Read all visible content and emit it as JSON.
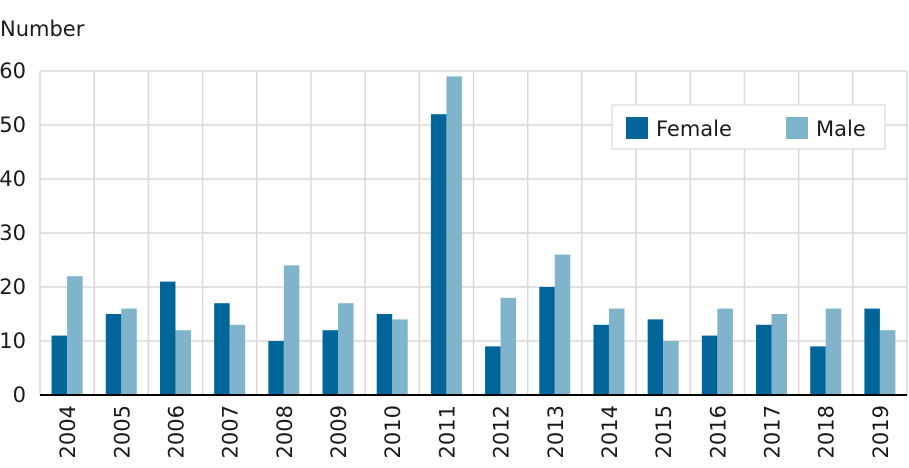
{
  "chart_data": {
    "type": "bar",
    "title": "",
    "xlabel": "",
    "ylabel": "Number",
    "ylim": [
      0,
      60
    ],
    "yticks": [
      0,
      10,
      20,
      30,
      40,
      50,
      60
    ],
    "grid": true,
    "legend_position": "top-right",
    "categories": [
      "2004",
      "2005",
      "2006",
      "2007",
      "2008",
      "2009",
      "2010",
      "2011",
      "2012",
      "2013",
      "2014",
      "2015",
      "2016",
      "2017",
      "2018",
      "2019"
    ],
    "series": [
      {
        "name": "Female",
        "color": "#006699",
        "values": [
          11,
          15,
          21,
          17,
          10,
          12,
          15,
          52,
          9,
          20,
          13,
          14,
          11,
          13,
          9,
          16
        ]
      },
      {
        "name": "Male",
        "color": "#80b3cc",
        "values": [
          22,
          16,
          12,
          13,
          24,
          17,
          14,
          59,
          18,
          26,
          16,
          10,
          16,
          15,
          16,
          12
        ]
      }
    ]
  }
}
